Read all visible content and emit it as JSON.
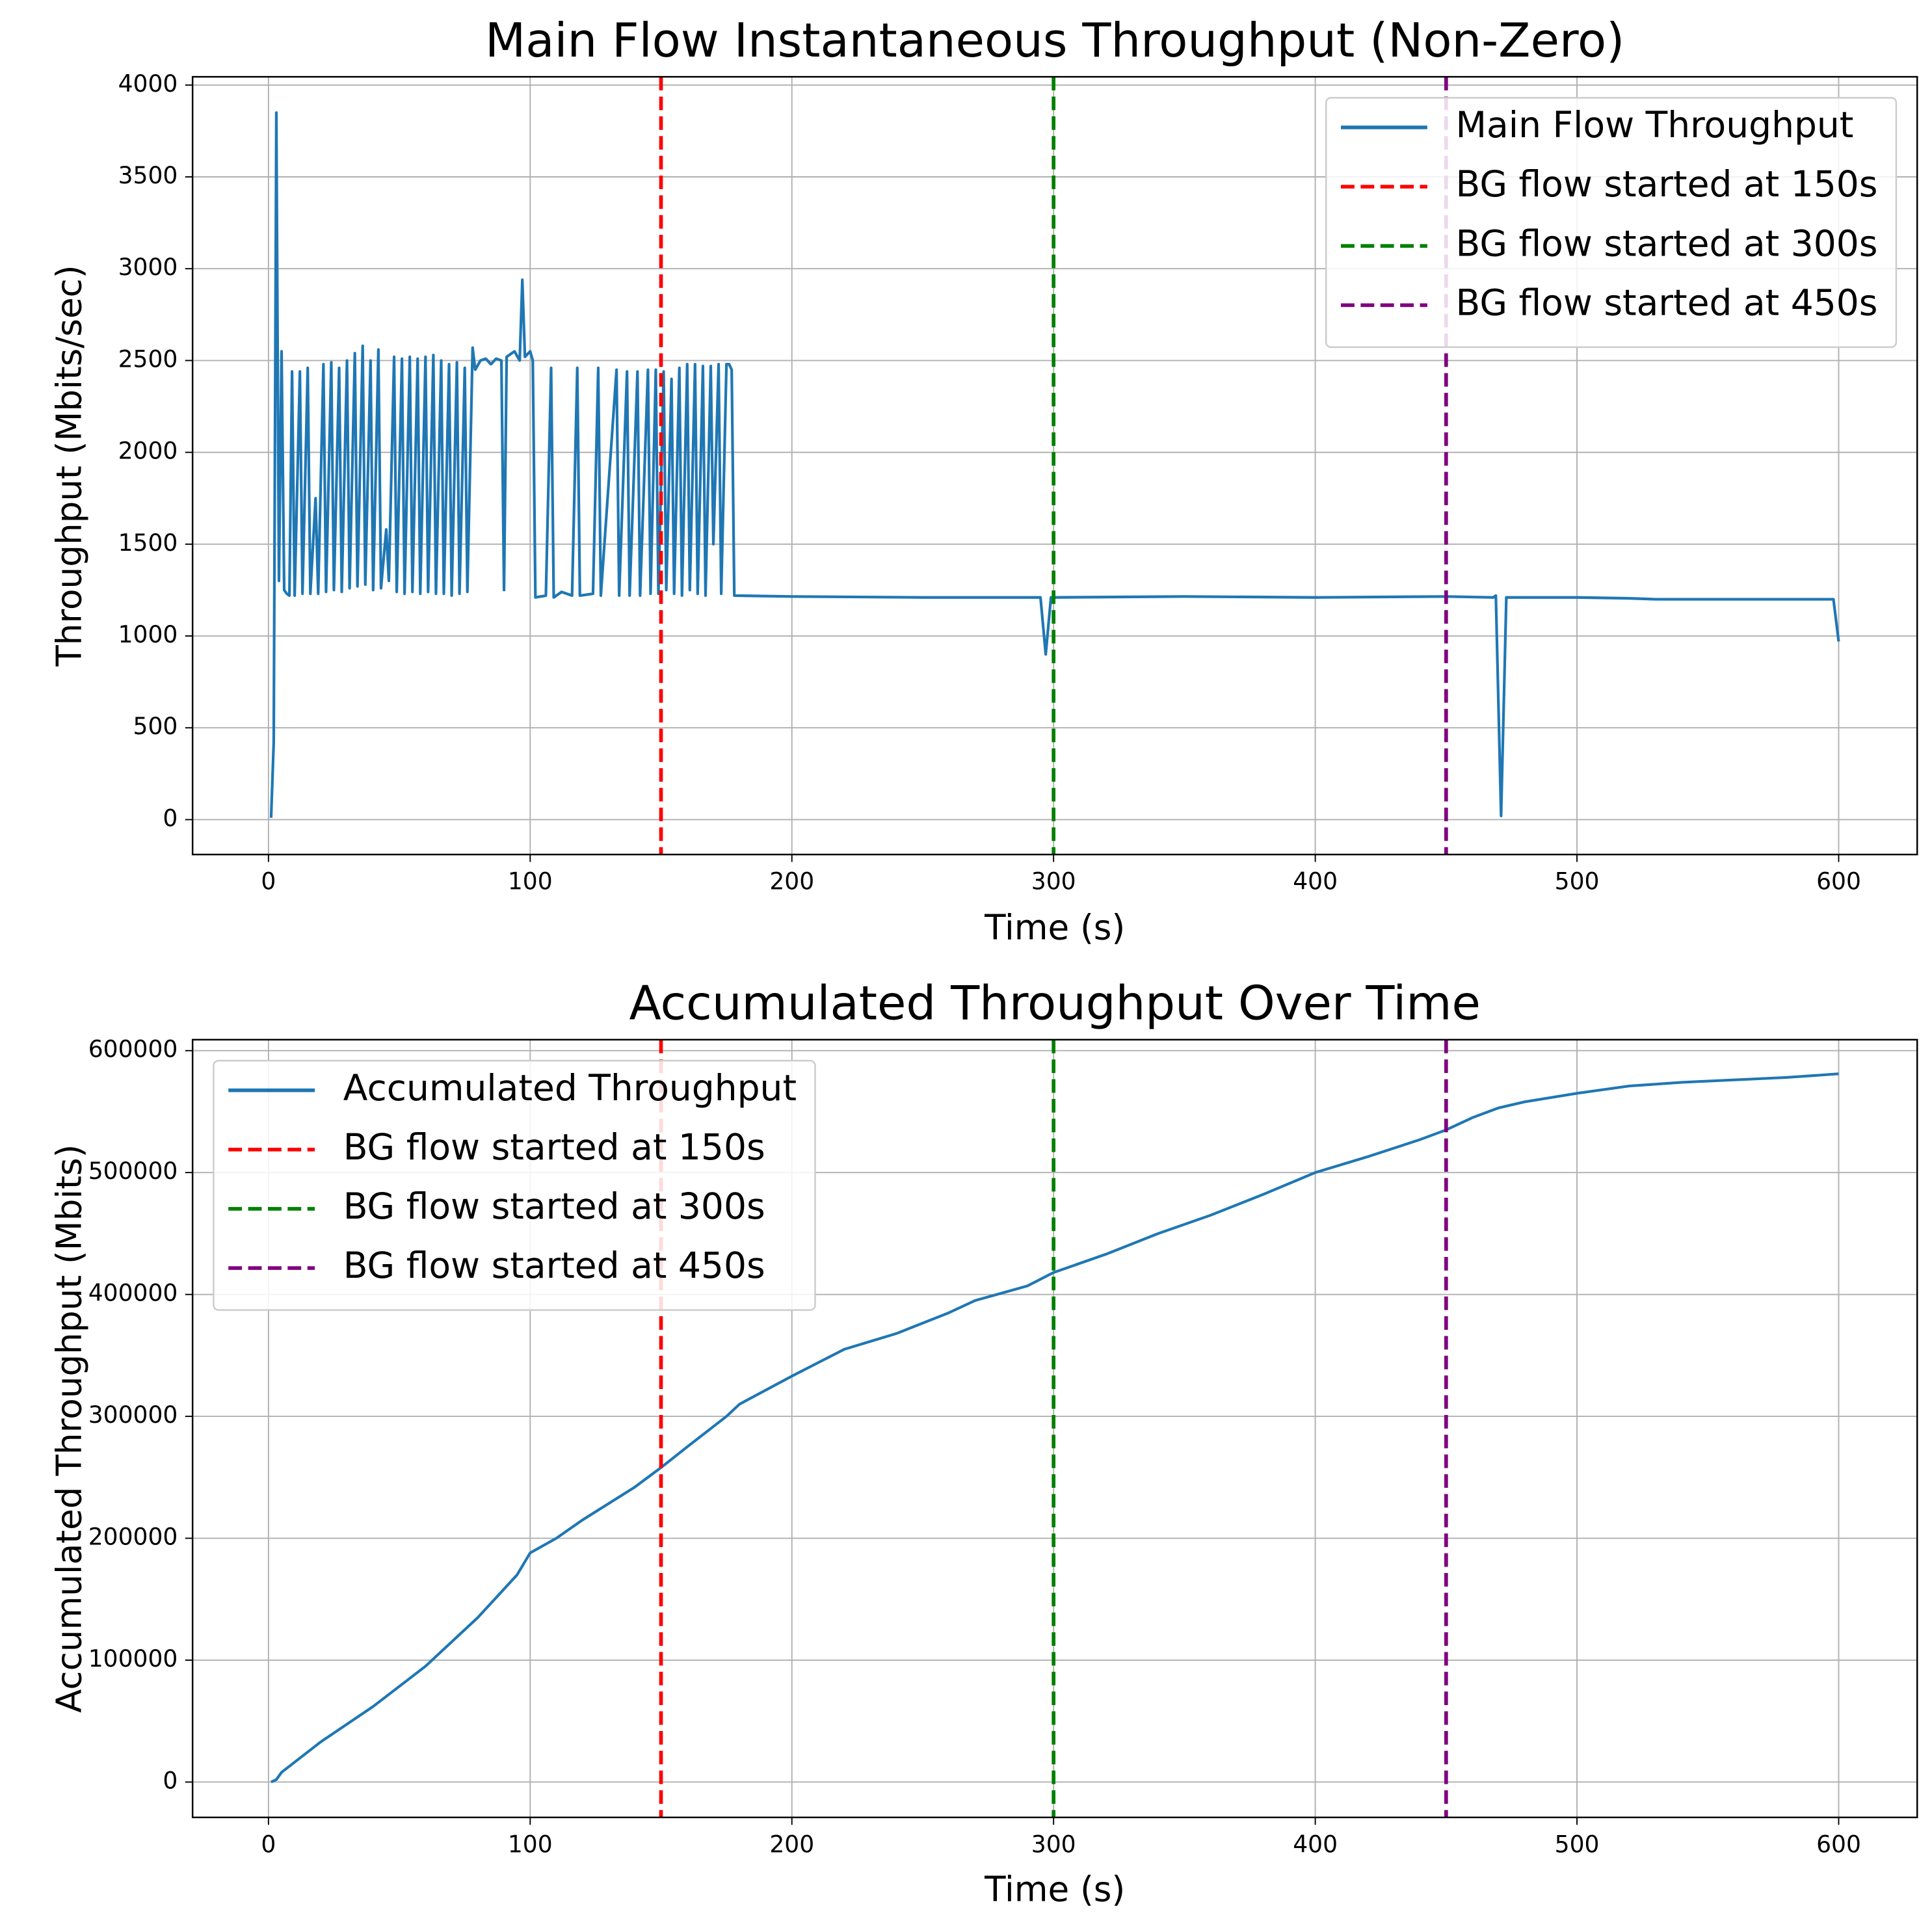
{
  "chart_data": [
    {
      "type": "line",
      "title": "Main Flow Instantaneous Throughput (Non-Zero)",
      "xlabel": "Time (s)",
      "ylabel": "Throughput (Mbits/sec)",
      "x": [
        1,
        2,
        3,
        4,
        5,
        6,
        7,
        8,
        9,
        10,
        12,
        13,
        15,
        16,
        18,
        19,
        21,
        22,
        24,
        25,
        27,
        28,
        30,
        31,
        33,
        34,
        36,
        37,
        39,
        40,
        42,
        43,
        45,
        46,
        48,
        49,
        51,
        52,
        54,
        55,
        57,
        58,
        60,
        61,
        63,
        64,
        66,
        67,
        69,
        70,
        72,
        73,
        75,
        76,
        78,
        79,
        81,
        83,
        85,
        87,
        89,
        90,
        91,
        94,
        96,
        97,
        98,
        100,
        101,
        102,
        106,
        108,
        109,
        112,
        116,
        118,
        119,
        124,
        126,
        127,
        133,
        134,
        137,
        138,
        141,
        142,
        145,
        146,
        148,
        149,
        151,
        152,
        154,
        155,
        157,
        158,
        160,
        161,
        163,
        164,
        166,
        167,
        169,
        170,
        172,
        173,
        175,
        176,
        177,
        178,
        200,
        250,
        295,
        297,
        299,
        350,
        400,
        450,
        468,
        469,
        471,
        473,
        500,
        520,
        530,
        598,
        600
      ],
      "series": [
        {
          "name": "Main Flow Throughput",
          "color": "#1f77b4",
          "values": [
            10,
            420,
            3850,
            1300,
            2550,
            1250,
            1230,
            1220,
            2440,
            1220,
            2440,
            1230,
            2460,
            1230,
            1750,
            1230,
            2480,
            1240,
            2490,
            1250,
            2460,
            1240,
            2500,
            1260,
            2540,
            1270,
            2580,
            1280,
            2500,
            1250,
            2560,
            1260,
            1580,
            1300,
            2520,
            1240,
            2510,
            1230,
            2520,
            1240,
            2510,
            1230,
            2520,
            1240,
            2530,
            1230,
            2500,
            1230,
            2480,
            1220,
            2490,
            1230,
            2460,
            1240,
            2570,
            2450,
            2500,
            2510,
            2480,
            2510,
            2500,
            1250,
            2520,
            2550,
            2500,
            2940,
            2520,
            2550,
            2500,
            1210,
            1220,
            2460,
            1210,
            1240,
            1220,
            2460,
            1220,
            1230,
            2460,
            1220,
            2450,
            1220,
            2440,
            1220,
            2440,
            1220,
            2450,
            1230,
            2450,
            1230,
            2440,
            1250,
            2400,
            1230,
            2460,
            1220,
            2480,
            1250,
            2480,
            1230,
            2470,
            1220,
            2470,
            1500,
            2480,
            1230,
            2480,
            2480,
            2450,
            1220,
            1215,
            1210,
            1210,
            900,
            1210,
            1215,
            1210,
            1215,
            1210,
            1220,
            20,
            1210,
            1210,
            1205,
            1200,
            1200,
            970
          ]
        }
      ],
      "vlines": [
        {
          "x": 150,
          "name": "BG flow started at 150s",
          "color": "#ff0000"
        },
        {
          "x": 300,
          "name": "BG flow started at 300s",
          "color": "#008000"
        },
        {
          "x": 450,
          "name": "BG flow started at 450s",
          "color": "#800080"
        }
      ],
      "xlim": [
        -29,
        630
      ],
      "xticks": [
        0,
        100,
        200,
        300,
        400,
        500,
        600
      ],
      "ylim": [
        -190,
        4045
      ],
      "yticks": [
        0,
        500,
        1000,
        1500,
        2000,
        2500,
        3000,
        3500,
        4000
      ],
      "grid": true,
      "legend": "upper right"
    },
    {
      "type": "line",
      "title": "Accumulated Throughput Over Time",
      "xlabel": "Time (s)",
      "ylabel": "Accumulated Throughput (Mbits)",
      "x": [
        1,
        3,
        5,
        20,
        40,
        60,
        80,
        95,
        100,
        110,
        120,
        140,
        150,
        160,
        175,
        180,
        200,
        220,
        240,
        260,
        270,
        290,
        300,
        320,
        340,
        360,
        380,
        400,
        420,
        440,
        450,
        460,
        470,
        480,
        500,
        520,
        540,
        560,
        580,
        600
      ],
      "series": [
        {
          "name": "Accumulated Throughput",
          "color": "#1f77b4",
          "values": [
            0,
            2000,
            8000,
            33000,
            62000,
            95000,
            135000,
            170000,
            188000,
            200000,
            215000,
            242000,
            258000,
            275000,
            300000,
            310000,
            333000,
            355000,
            368000,
            385000,
            395000,
            407000,
            418000,
            433000,
            450000,
            465000,
            482000,
            500000,
            513000,
            527000,
            535000,
            545000,
            553000,
            558000,
            565000,
            571000,
            574000,
            576000,
            578000,
            581000
          ]
        }
      ],
      "vlines": [
        {
          "x": 150,
          "name": "BG flow started at 150s",
          "color": "#ff0000"
        },
        {
          "x": 300,
          "name": "BG flow started at 300s",
          "color": "#008000"
        },
        {
          "x": 450,
          "name": "BG flow started at 450s",
          "color": "#800080"
        }
      ],
      "xlim": [
        -29,
        630
      ],
      "xticks": [
        0,
        100,
        200,
        300,
        400,
        500,
        600
      ],
      "ylim": [
        -29000,
        609000
      ],
      "yticks": [
        0,
        100000,
        200000,
        300000,
        400000,
        500000,
        600000
      ],
      "grid": true,
      "legend": "upper left"
    }
  ]
}
